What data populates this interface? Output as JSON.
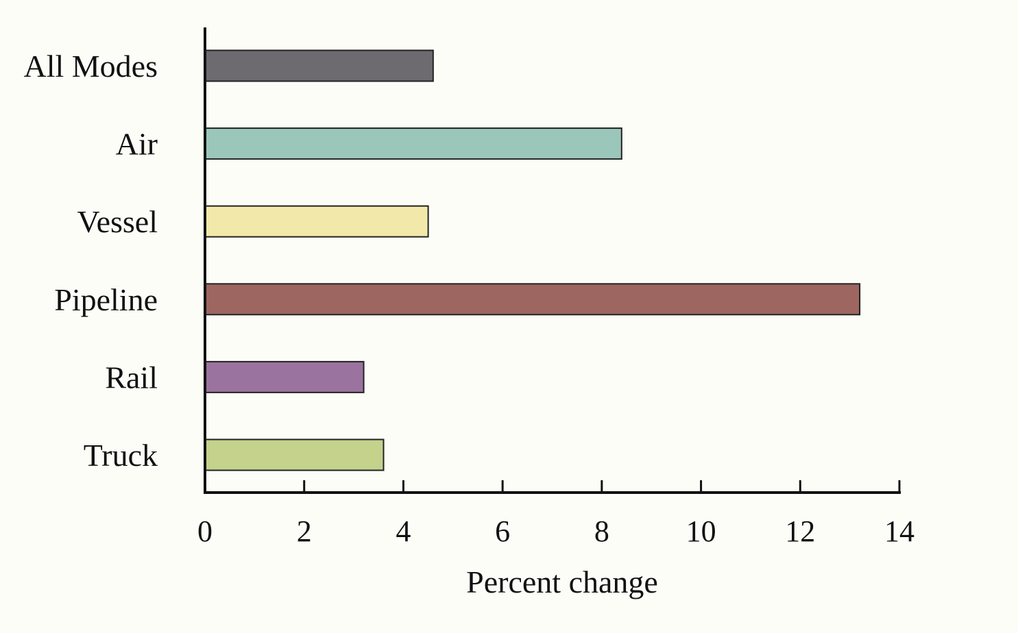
{
  "chart_data": {
    "type": "bar",
    "orientation": "horizontal",
    "categories": [
      "All Modes",
      "Air",
      "Vessel",
      "Pipeline",
      "Rail",
      "Truck"
    ],
    "values": [
      4.6,
      8.4,
      4.5,
      13.2,
      3.2,
      3.6
    ],
    "colors": [
      "#6d6b70",
      "#9bc6ba",
      "#f2e8aa",
      "#9d6660",
      "#9b739f",
      "#c4d28c"
    ],
    "title": "",
    "xlabel": "Percent change",
    "ylabel": "",
    "xlim": [
      0,
      14
    ],
    "xticks": [
      "0",
      "2",
      "4",
      "6",
      "8",
      "10",
      "12",
      "14"
    ],
    "grid": false,
    "legend": "none"
  }
}
